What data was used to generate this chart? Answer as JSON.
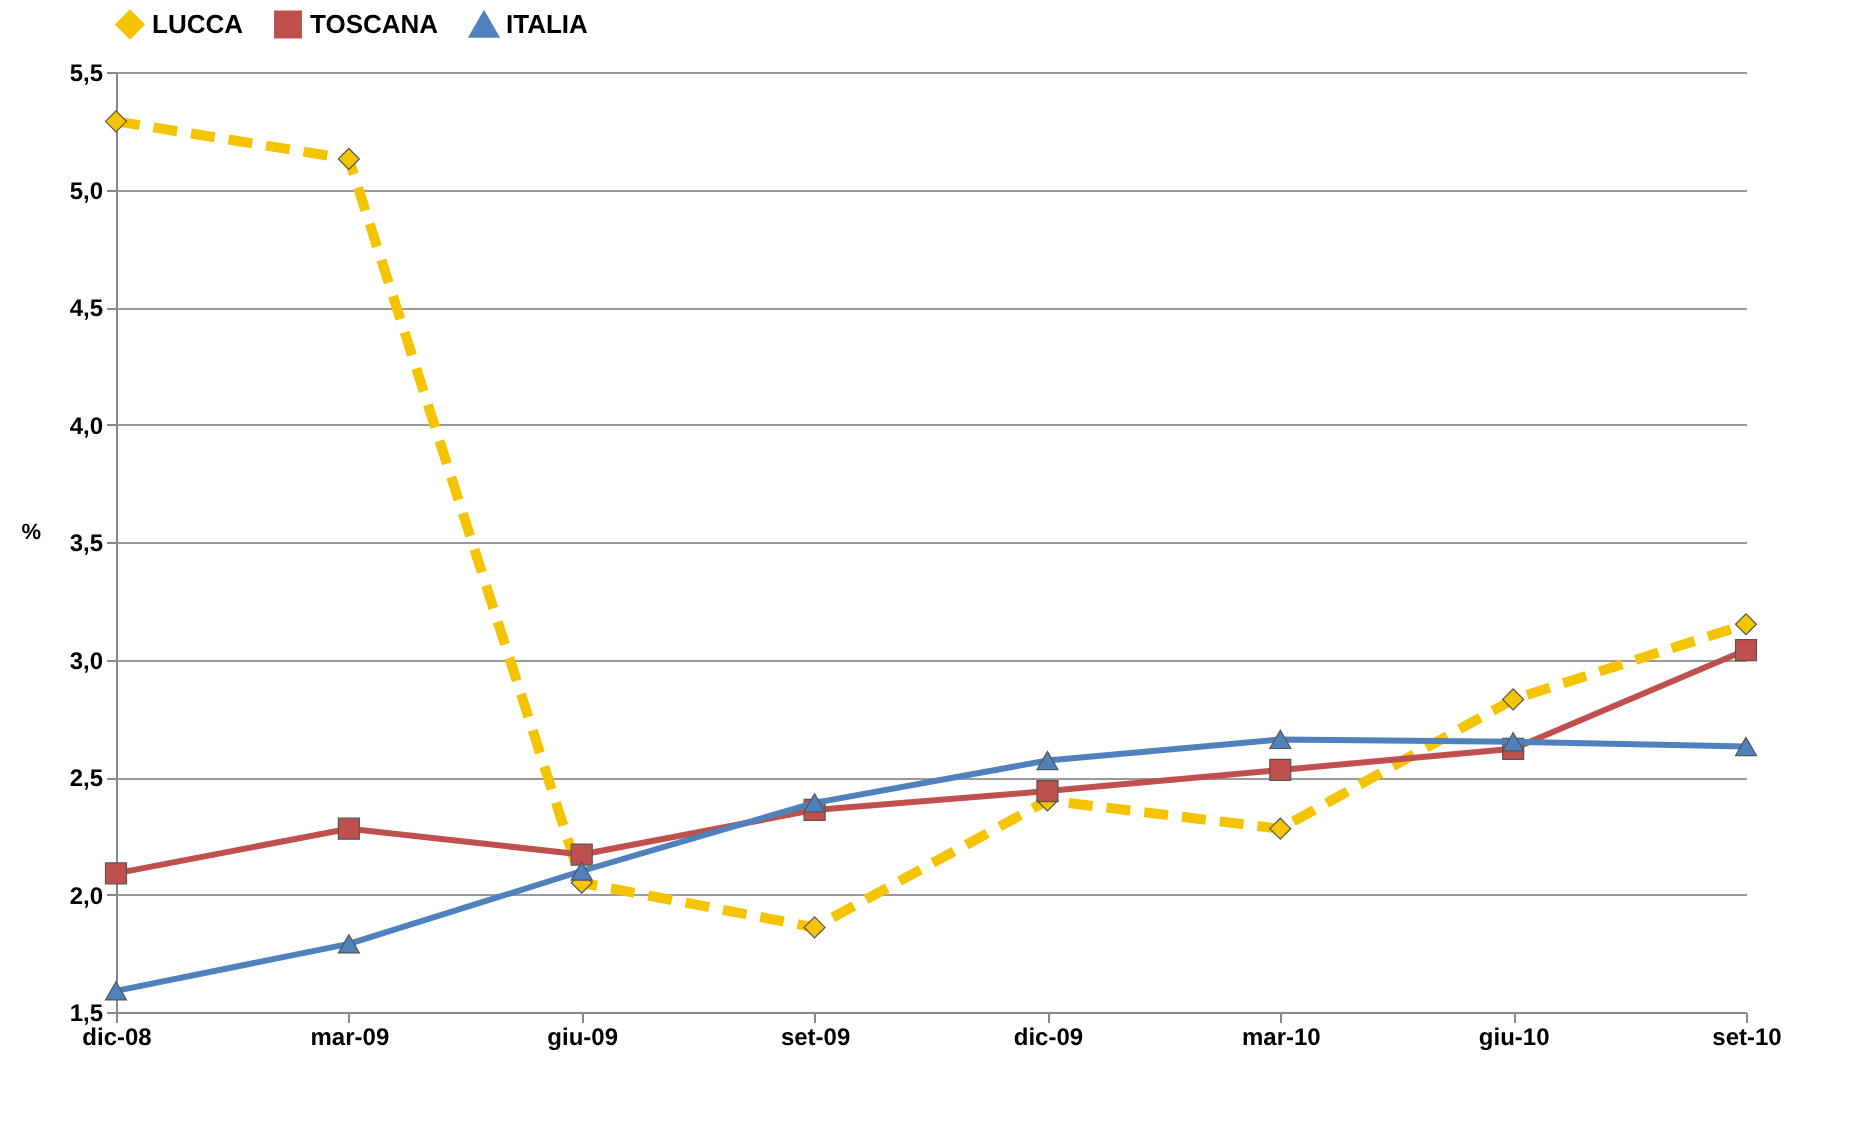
{
  "chart_data": {
    "type": "line",
    "ylabel": "%",
    "categories": [
      "dic-08",
      "mar-09",
      "giu-09",
      "set-09",
      "dic-09",
      "mar-10",
      "giu-10",
      "set-10"
    ],
    "ylim": [
      1.5,
      5.5
    ],
    "yticks": [
      {
        "value": 1.5,
        "label": "1,5"
      },
      {
        "value": 2,
        "label": "2,0"
      },
      {
        "value": 2.5,
        "label": "2,5"
      },
      {
        "value": 3,
        "label": "3,0"
      },
      {
        "value": 3.5,
        "label": "3,5"
      },
      {
        "value": 4,
        "label": "4,0"
      },
      {
        "value": 4.5,
        "label": "4,5"
      },
      {
        "value": 5,
        "label": "5,0"
      },
      {
        "value": 5.5,
        "label": "5,5"
      }
    ],
    "grid": "y",
    "legend": "top",
    "series": [
      {
        "name": "LUCCA",
        "color": "#f5c400",
        "marker": "diamond",
        "line_style": "dashed",
        "values": [
          5.29,
          5.13,
          2.05,
          1.86,
          2.4,
          2.28,
          2.83,
          3.15
        ]
      },
      {
        "name": "TOSCANA",
        "color": "#c0504d",
        "marker": "square",
        "line_style": "solid",
        "values": [
          2.09,
          2.28,
          2.17,
          2.36,
          2.44,
          2.53,
          2.62,
          3.04
        ]
      },
      {
        "name": "ITALIA",
        "color": "#4f81bd",
        "marker": "triangle",
        "line_style": "solid",
        "values": [
          1.59,
          1.79,
          2.1,
          2.39,
          2.57,
          2.66,
          2.65,
          2.63
        ]
      }
    ]
  }
}
